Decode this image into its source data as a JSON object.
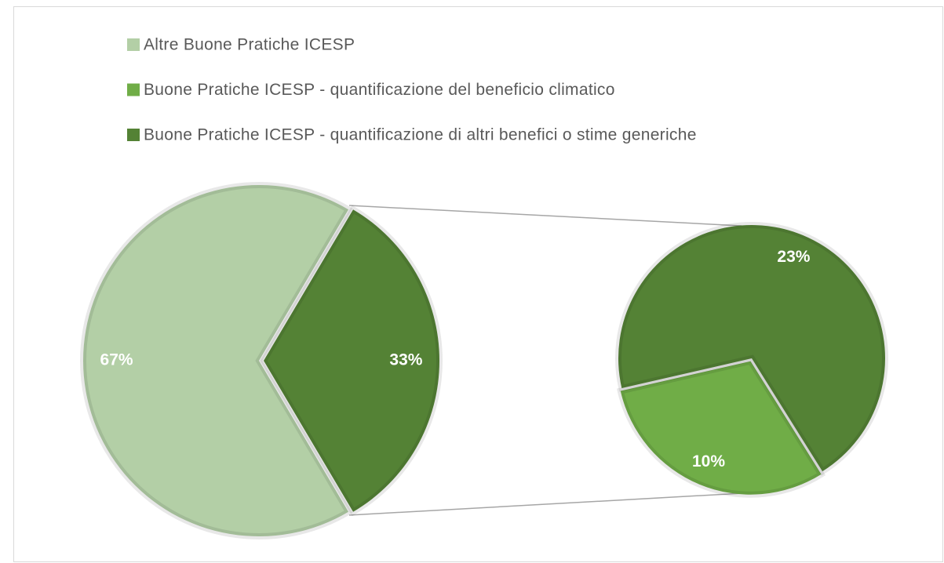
{
  "chart_data": {
    "type": "pie",
    "legend": [
      {
        "name": "Altre Buone Pratiche ICESP",
        "color": "#b3cfa6"
      },
      {
        "name": "Buone Pratiche ICESP - quantificazione del beneficio climatico",
        "color": "#70ad47"
      },
      {
        "name": "Buone Pratiche ICESP - quantificazione di altri benefici o stime generiche",
        "color": "#548235"
      }
    ],
    "main": {
      "values": [
        67,
        33
      ],
      "value_labels": [
        "67%",
        "33%"
      ],
      "colors": [
        "#b3cfa6",
        "#548235"
      ]
    },
    "secondary": {
      "values": [
        10,
        23
      ],
      "value_labels": [
        "10%",
        "23%"
      ],
      "colors": [
        "#70ad47",
        "#548235"
      ]
    }
  }
}
